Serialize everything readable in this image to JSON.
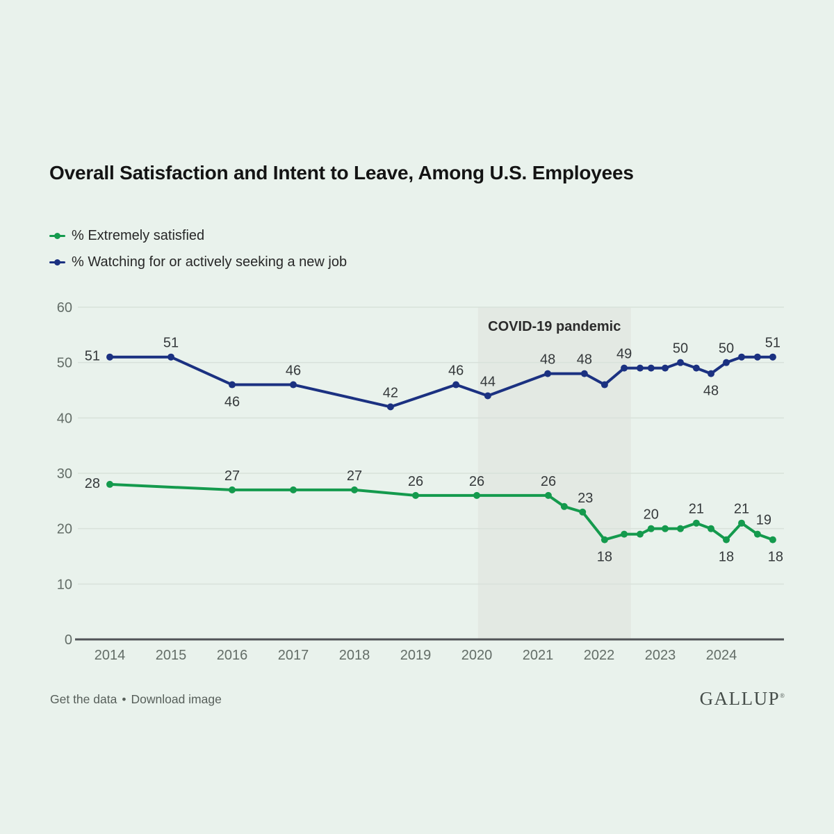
{
  "page": {
    "background": "#e9f2ec"
  },
  "header": {
    "title": "Overall Satisfaction and Intent to Leave, Among U.S. Employees"
  },
  "footer": {
    "get_data_label": "Get the data",
    "separator": "•",
    "download_label": "Download image",
    "brand": "GALLUP",
    "brand_mark": "®"
  },
  "chart_data": {
    "type": "line",
    "title": "Overall Satisfaction and Intent to Leave, Among U.S. Employees",
    "xlabel": "",
    "ylabel": "",
    "grid": "horizontal",
    "legend_position": "top-left",
    "x_axis": {
      "ticks": [
        "2014",
        "2015",
        "2016",
        "2017",
        "2018",
        "2019",
        "2020",
        "2021",
        "2022",
        "2023",
        "2024"
      ],
      "min": 2013.45,
      "max": 2025.05
    },
    "y_axis": {
      "ticks": [
        60,
        50,
        40,
        30,
        20,
        10,
        0
      ],
      "min": 0,
      "max": 60
    },
    "covid_band": {
      "label": "COVID-19 pandemic",
      "start": 2020.02,
      "end": 2022.52,
      "color": "#e3e9e3"
    },
    "series": [
      {
        "name": "% Extremely satisfied",
        "color": "#149a4d",
        "points": [
          {
            "x": 2014.0,
            "y": 28,
            "label": "28",
            "pos": "left"
          },
          {
            "x": 2016.0,
            "y": 27,
            "label": "27",
            "pos": "above"
          },
          {
            "x": 2017.0,
            "y": 27
          },
          {
            "x": 2018.0,
            "y": 27,
            "label": "27",
            "pos": "above"
          },
          {
            "x": 2019.0,
            "y": 26,
            "label": "26",
            "pos": "above"
          },
          {
            "x": 2020.0,
            "y": 26,
            "label": "26",
            "pos": "above"
          },
          {
            "x": 2021.17,
            "y": 26,
            "label": "26",
            "pos": "above"
          },
          {
            "x": 2021.43,
            "y": 24
          },
          {
            "x": 2021.73,
            "y": 23,
            "label": "23",
            "pos": "above",
            "dx": 4
          },
          {
            "x": 2022.09,
            "y": 18,
            "label": "18",
            "pos": "below"
          },
          {
            "x": 2022.41,
            "y": 19
          },
          {
            "x": 2022.67,
            "y": 19
          },
          {
            "x": 2022.85,
            "y": 20,
            "label": "20",
            "pos": "above"
          },
          {
            "x": 2023.08,
            "y": 20
          },
          {
            "x": 2023.33,
            "y": 20
          },
          {
            "x": 2023.59,
            "y": 21,
            "label": "21",
            "pos": "above"
          },
          {
            "x": 2023.83,
            "y": 20
          },
          {
            "x": 2024.08,
            "y": 18,
            "label": "18",
            "pos": "below"
          },
          {
            "x": 2024.33,
            "y": 21,
            "label": "21",
            "pos": "above"
          },
          {
            "x": 2024.59,
            "y": 19,
            "label": "19",
            "pos": "above",
            "dx": 9
          },
          {
            "x": 2024.84,
            "y": 18,
            "label": "18",
            "pos": "below",
            "dx": 4
          }
        ]
      },
      {
        "name": "% Watching for or actively seeking a new job",
        "color": "#1b3181",
        "points": [
          {
            "x": 2014.0,
            "y": 51,
            "label": "51",
            "pos": "left"
          },
          {
            "x": 2015.0,
            "y": 51,
            "label": "51",
            "pos": "above"
          },
          {
            "x": 2016.0,
            "y": 46,
            "label": "46",
            "pos": "below"
          },
          {
            "x": 2017.0,
            "y": 46,
            "label": "46",
            "pos": "above"
          },
          {
            "x": 2018.59,
            "y": 42,
            "label": "42",
            "pos": "above"
          },
          {
            "x": 2019.66,
            "y": 46,
            "label": "46",
            "pos": "above"
          },
          {
            "x": 2020.18,
            "y": 44,
            "label": "44",
            "pos": "above"
          },
          {
            "x": 2021.16,
            "y": 48,
            "label": "48",
            "pos": "above"
          },
          {
            "x": 2021.76,
            "y": 48,
            "label": "48",
            "pos": "above"
          },
          {
            "x": 2022.09,
            "y": 46
          },
          {
            "x": 2022.41,
            "y": 49,
            "label": "49",
            "pos": "above"
          },
          {
            "x": 2022.67,
            "y": 49
          },
          {
            "x": 2022.85,
            "y": 49
          },
          {
            "x": 2023.08,
            "y": 49
          },
          {
            "x": 2023.33,
            "y": 50,
            "label": "50",
            "pos": "above"
          },
          {
            "x": 2023.59,
            "y": 49
          },
          {
            "x": 2023.83,
            "y": 48,
            "label": "48",
            "pos": "below"
          },
          {
            "x": 2024.08,
            "y": 50,
            "label": "50",
            "pos": "above"
          },
          {
            "x": 2024.33,
            "y": 51
          },
          {
            "x": 2024.59,
            "y": 51
          },
          {
            "x": 2024.84,
            "y": 51,
            "label": "51",
            "pos": "above"
          }
        ]
      }
    ]
  }
}
